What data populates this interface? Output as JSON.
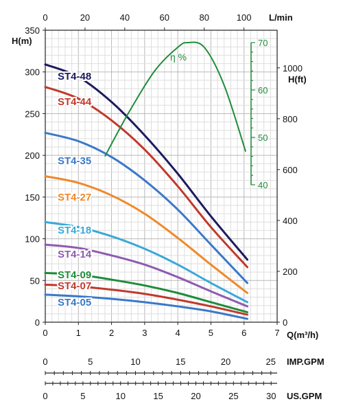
{
  "chart_data": {
    "type": "line",
    "axes": {
      "x_bottom": {
        "label": "Q(m³/h)",
        "ticks": [
          "0",
          "1",
          "2",
          "3",
          "4",
          "5",
          "6",
          "7"
        ],
        "range": [
          0,
          7
        ]
      },
      "x_top": {
        "label": "L/min",
        "ticks": [
          "0",
          "20",
          "40",
          "60",
          "80",
          "100"
        ],
        "range": [
          0,
          116.7
        ]
      },
      "y_left": {
        "label": "H(m)",
        "ticks": [
          "0",
          "50",
          "100",
          "150",
          "200",
          "250",
          "300",
          "350"
        ],
        "range": [
          0,
          350
        ]
      },
      "y_right": {
        "label": "H(ft)",
        "ticks": [
          "0",
          "200",
          "400",
          "600",
          "800",
          "1000"
        ],
        "range": [
          0,
          1148
        ]
      },
      "eta": {
        "label": "η %",
        "ticks": [
          "40",
          "50",
          "60",
          "70"
        ],
        "range": [
          40,
          70
        ]
      },
      "imp_gpm": {
        "label": "IMP.GPM",
        "ticks": [
          "0",
          "5",
          "10",
          "15",
          "20",
          "25"
        ],
        "range": [
          0,
          25.7
        ]
      },
      "us_gpm": {
        "label": "US.GPM",
        "ticks": [
          "0",
          "5",
          "10",
          "15",
          "20",
          "25",
          "30"
        ],
        "range": [
          0,
          30.8
        ]
      }
    },
    "grid": true,
    "series": [
      {
        "name": "ST4-48",
        "color": "#1b1b5e",
        "x": [
          0,
          1,
          2,
          3,
          4,
          5,
          6.1
        ],
        "y": [
          309,
          294,
          264,
          224,
          178,
          127,
          75
        ]
      },
      {
        "name": "ST4-44",
        "color": "#c0392b",
        "x": [
          0,
          1,
          2,
          3,
          4,
          5,
          6.1
        ],
        "y": [
          282,
          268,
          242,
          207,
          163,
          114,
          66
        ]
      },
      {
        "name": "ST4-35",
        "color": "#3a78c9",
        "x": [
          0,
          1,
          2,
          3,
          4,
          5,
          6.1
        ],
        "y": [
          227,
          217,
          198,
          170,
          135,
          93,
          47
        ]
      },
      {
        "name": "ST4-27",
        "color": "#f0882a",
        "x": [
          0,
          1,
          2,
          3,
          4,
          5,
          6.1
        ],
        "y": [
          175,
          167,
          152,
          130,
          101,
          69,
          35
        ]
      },
      {
        "name": "ST4-18",
        "color": "#3aa8d8",
        "x": [
          0,
          1,
          2,
          3,
          4,
          5,
          6.1
        ],
        "y": [
          120,
          114,
          103,
          88,
          69,
          47,
          24
        ]
      },
      {
        "name": "ST4-14",
        "color": "#8e5bb0",
        "x": [
          0,
          1,
          2,
          3,
          4,
          5,
          6.1
        ],
        "y": [
          93,
          89,
          80,
          69,
          54,
          37,
          19
        ]
      },
      {
        "name": "ST4-09",
        "color": "#1e8c3a",
        "x": [
          0,
          1,
          2,
          3,
          4,
          5,
          6.1
        ],
        "y": [
          59,
          57,
          51,
          44,
          35,
          24,
          12
        ]
      },
      {
        "name": "ST4-07",
        "color": "#c0392b",
        "x": [
          0,
          1,
          2,
          3,
          4,
          5,
          6.1
        ],
        "y": [
          45,
          43,
          39,
          34,
          27,
          19,
          9
        ]
      },
      {
        "name": "ST4-05",
        "color": "#3a78c9",
        "x": [
          0,
          1,
          2,
          3,
          4,
          5,
          6.1
        ],
        "y": [
          33,
          31,
          28,
          24,
          19,
          13,
          4
        ]
      }
    ],
    "efficiency": {
      "name": "η %",
      "color": "#1e8c3a",
      "x": [
        1.8,
        2.5,
        3.3,
        4.0,
        4.3,
        4.8,
        5.4,
        6.05
      ],
      "y": [
        46,
        55,
        64,
        69,
        70,
        69,
        61,
        47
      ]
    }
  }
}
